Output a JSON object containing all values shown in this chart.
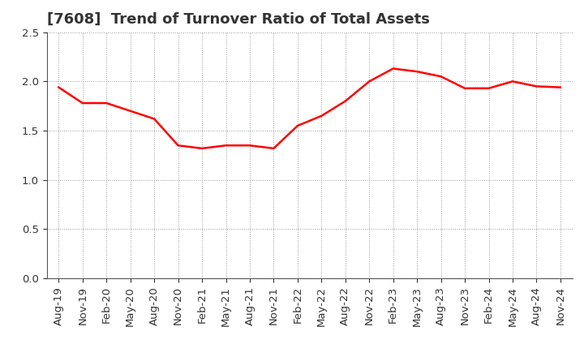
{
  "title": "[7608]  Trend of Turnover Ratio of Total Assets",
  "x_labels": [
    "Aug-19",
    "Nov-19",
    "Feb-20",
    "May-20",
    "Aug-20",
    "Nov-20",
    "Feb-21",
    "May-21",
    "Aug-21",
    "Nov-21",
    "Feb-22",
    "May-22",
    "Aug-22",
    "Nov-22",
    "Feb-23",
    "May-23",
    "Aug-23",
    "Nov-23",
    "Feb-24",
    "May-24",
    "Aug-24",
    "Nov-24"
  ],
  "values": [
    1.94,
    1.78,
    1.78,
    1.7,
    1.62,
    1.35,
    1.32,
    1.35,
    1.35,
    1.32,
    1.55,
    1.65,
    1.8,
    2.0,
    2.13,
    2.1,
    2.05,
    1.93,
    1.93,
    2.0,
    1.95,
    1.94
  ],
  "line_color": "#FF0000",
  "line_width": 1.8,
  "ylim": [
    0.0,
    2.5
  ],
  "yticks": [
    0.0,
    0.5,
    1.0,
    1.5,
    2.0,
    2.5
  ],
  "background_color": "#ffffff",
  "grid_color": "#999999",
  "title_fontsize": 13,
  "tick_fontsize": 9.5,
  "title_color": "#333333"
}
